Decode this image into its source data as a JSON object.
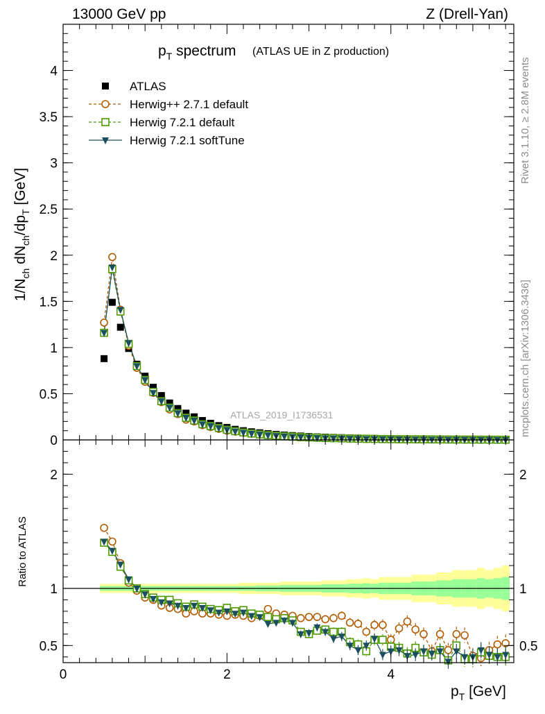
{
  "header": {
    "left": "13000 GeV pp",
    "right": "Z (Drell-Yan)"
  },
  "side_labels": {
    "rivet": "Rivet 3.1.10, ≥ 2.8M events",
    "mcplots": "mcplots.cern.ch [arXiv:1306.3436]"
  },
  "chart_data": [
    {
      "type": "scatter",
      "panel": "main",
      "title_main": "p",
      "title_sub": "T",
      "title_rest": " spectrum",
      "title_note": "(ATLAS UE in Z production)",
      "ylabel": "1/N_ch dN_ch/dp_T [GeV]",
      "analysis_label": "ATLAS_2019_I1736531",
      "xlim": [
        0,
        5.5
      ],
      "ylim": [
        0,
        4.5
      ],
      "y_ticks": [
        {
          "v": 0,
          "label": "0"
        },
        {
          "v": 0.5,
          "label": "0.5"
        },
        {
          "v": 1,
          "label": "1"
        },
        {
          "v": 1.5,
          "label": "1.5"
        },
        {
          "v": 2,
          "label": "2"
        },
        {
          "v": 2.5,
          "label": "2.5"
        },
        {
          "v": 3,
          "label": "3"
        },
        {
          "v": 3.5,
          "label": "3.5"
        },
        {
          "v": 4,
          "label": "4"
        }
      ],
      "legend": [
        {
          "name": "ATLAS",
          "color": "#000000",
          "marker": "square-filled",
          "line": "none"
        },
        {
          "name": "Herwig++ 2.7.1 default",
          "color": "#b35900",
          "marker": "circle-open",
          "line": "dashed"
        },
        {
          "name": "Herwig 7.2.1 default",
          "color": "#4d9900",
          "marker": "square-open",
          "line": "dashed"
        },
        {
          "name": "Herwig 7.2.1 softTune",
          "color": "#1c4f5e",
          "marker": "triangle-filled",
          "line": "solid"
        }
      ],
      "x": [
        0.5,
        0.6,
        0.7,
        0.8,
        0.9,
        1.0,
        1.1,
        1.2,
        1.3,
        1.4,
        1.5,
        1.6,
        1.7,
        1.8,
        1.9,
        2.0,
        2.1,
        2.2,
        2.3,
        2.4,
        2.5,
        2.6,
        2.7,
        2.8,
        2.9,
        3.0,
        3.1,
        3.2,
        3.3,
        3.4,
        3.5,
        3.6,
        3.7,
        3.8,
        3.9,
        4.0,
        4.1,
        4.2,
        4.3,
        4.4,
        4.5,
        4.6,
        4.7,
        4.8,
        4.9,
        5.0,
        5.1,
        5.2,
        5.3,
        5.4
      ],
      "series": [
        {
          "name": "ATLAS",
          "values": [
            0.88,
            1.49,
            1.22,
            0.99,
            0.82,
            0.69,
            0.57,
            0.48,
            0.4,
            0.34,
            0.29,
            0.25,
            0.21,
            0.18,
            0.155,
            0.135,
            0.115,
            0.1,
            0.088,
            0.077,
            0.068,
            0.06,
            0.053,
            0.047,
            0.042,
            0.037,
            0.033,
            0.03,
            0.027,
            0.024,
            0.022,
            0.02,
            0.018,
            0.016,
            0.015,
            0.013,
            0.012,
            0.011,
            0.01,
            0.009,
            0.0085,
            0.008,
            0.0075,
            0.007,
            0.0065,
            0.006,
            0.0055,
            0.005,
            0.0045,
            0.004
          ]
        },
        {
          "name": "Herwig++ 2.7.1 default",
          "values": [
            1.27,
            1.98,
            1.41,
            1.02,
            0.78,
            0.63,
            0.51,
            0.41,
            0.33,
            0.28,
            0.22,
            0.2,
            0.16,
            0.14,
            0.12,
            0.1,
            0.09,
            0.078,
            0.067,
            0.059,
            0.052,
            0.046,
            0.041,
            0.036,
            0.032,
            0.028,
            0.025,
            0.022,
            0.02,
            0.018,
            0.016,
            0.014,
            0.013,
            0.011,
            0.01,
            0.009,
            0.0085,
            0.008,
            0.0075,
            0.007,
            0.0065,
            0.006,
            0.0055,
            0.005,
            0.0045,
            0.004,
            0.0035,
            0.003,
            0.0028,
            0.0026
          ]
        },
        {
          "name": "Herwig 7.2.1 default",
          "values": [
            1.16,
            1.85,
            1.39,
            1.04,
            0.8,
            0.65,
            0.52,
            0.42,
            0.35,
            0.29,
            0.24,
            0.21,
            0.17,
            0.15,
            0.13,
            0.11,
            0.095,
            0.081,
            0.07,
            0.06,
            0.052,
            0.045,
            0.04,
            0.035,
            0.03,
            0.027,
            0.024,
            0.021,
            0.019,
            0.017,
            0.015,
            0.013,
            0.012,
            0.011,
            0.0095,
            0.0085,
            0.0075,
            0.007,
            0.0065,
            0.006,
            0.0055,
            0.005,
            0.0045,
            0.004,
            0.0037,
            0.0034,
            0.0031,
            0.0028,
            0.0025,
            0.0022
          ]
        },
        {
          "name": "Herwig 7.2.1 softTune",
          "values": [
            1.16,
            1.87,
            1.41,
            1.05,
            0.8,
            0.65,
            0.51,
            0.42,
            0.35,
            0.29,
            0.24,
            0.21,
            0.17,
            0.15,
            0.13,
            0.11,
            0.093,
            0.08,
            0.069,
            0.059,
            0.051,
            0.044,
            0.039,
            0.034,
            0.03,
            0.026,
            0.023,
            0.02,
            0.018,
            0.016,
            0.014,
            0.013,
            0.011,
            0.01,
            0.009,
            0.0082,
            0.0073,
            0.0066,
            0.006,
            0.0055,
            0.005,
            0.0045,
            0.004,
            0.0036,
            0.0033,
            0.003,
            0.0027,
            0.0024,
            0.0022,
            0.002
          ]
        }
      ]
    },
    {
      "type": "scatter",
      "panel": "ratio",
      "ylabel": "Ratio to ATLAS",
      "xlabel": "p_T [GeV]",
      "xlim": [
        0,
        5.5
      ],
      "ylim": [
        0.35,
        2.3
      ],
      "x_ticks": [
        {
          "v": 0,
          "label": "0"
        },
        {
          "v": 2,
          "label": "2"
        },
        {
          "v": 4,
          "label": "4"
        }
      ],
      "y_ticks": [
        {
          "v": 0.5,
          "label": "0.5"
        },
        {
          "v": 1,
          "label": "1"
        },
        {
          "v": 2,
          "label": "2"
        }
      ],
      "reference": 1,
      "band_colors": {
        "outer": "#ffff99",
        "inner": "#99ff99"
      },
      "uncertainty_inner": [
        0.02,
        0.02,
        0.02,
        0.02,
        0.02,
        0.02,
        0.02,
        0.02,
        0.02,
        0.02,
        0.02,
        0.02,
        0.02,
        0.02,
        0.02,
        0.02,
        0.02,
        0.02,
        0.02,
        0.025,
        0.025,
        0.025,
        0.03,
        0.03,
        0.03,
        0.03,
        0.03,
        0.035,
        0.035,
        0.035,
        0.04,
        0.04,
        0.045,
        0.04,
        0.05,
        0.05,
        0.05,
        0.05,
        0.06,
        0.06,
        0.06,
        0.07,
        0.07,
        0.08,
        0.08,
        0.08,
        0.09,
        0.08,
        0.09,
        0.1
      ],
      "uncertainty_outer": [
        0.04,
        0.04,
        0.04,
        0.04,
        0.04,
        0.04,
        0.04,
        0.04,
        0.04,
        0.04,
        0.04,
        0.04,
        0.04,
        0.04,
        0.04,
        0.04,
        0.04,
        0.05,
        0.05,
        0.05,
        0.05,
        0.05,
        0.06,
        0.06,
        0.06,
        0.06,
        0.06,
        0.07,
        0.07,
        0.07,
        0.08,
        0.08,
        0.09,
        0.08,
        0.1,
        0.1,
        0.1,
        0.1,
        0.12,
        0.12,
        0.12,
        0.14,
        0.14,
        0.16,
        0.16,
        0.16,
        0.18,
        0.16,
        0.18,
        0.2
      ],
      "series": [
        {
          "name": "Herwig++ 2.7.1 default",
          "values": [
            1.53,
            1.41,
            1.22,
            1.05,
            0.98,
            0.92,
            0.9,
            0.85,
            0.83,
            0.82,
            0.78,
            0.8,
            0.78,
            0.78,
            0.77,
            0.76,
            0.77,
            0.76,
            0.74,
            0.76,
            0.82,
            0.78,
            0.77,
            0.76,
            0.74,
            0.75,
            0.75,
            0.73,
            0.74,
            0.76,
            0.7,
            0.69,
            0.62,
            0.68,
            0.68,
            0.55,
            0.65,
            0.71,
            0.64,
            0.6,
            0.45,
            0.6,
            0.46,
            0.6,
            0.59,
            0.41,
            0.39,
            0.46,
            0.51,
            0.52
          ]
        },
        {
          "name": "Herwig 7.2.1 default",
          "values": [
            1.4,
            1.32,
            1.19,
            1.07,
            1.0,
            0.95,
            0.92,
            0.9,
            0.9,
            0.87,
            0.84,
            0.86,
            0.84,
            0.82,
            0.81,
            0.83,
            0.8,
            0.81,
            0.78,
            0.77,
            0.75,
            0.73,
            0.74,
            0.72,
            0.62,
            0.6,
            0.63,
            0.64,
            0.62,
            0.62,
            0.53,
            0.51,
            0.45,
            0.55,
            0.55,
            0.49,
            0.48,
            0.43,
            0.48,
            0.44,
            0.42,
            0.46,
            0.37,
            0.5,
            0.38,
            0.38,
            0.44,
            0.41,
            0.4,
            0.4
          ]
        },
        {
          "name": "Herwig 7.2.1 softTune",
          "values": [
            1.41,
            1.33,
            1.21,
            1.08,
            1.0,
            0.95,
            0.91,
            0.88,
            0.87,
            0.85,
            0.83,
            0.85,
            0.83,
            0.81,
            0.79,
            0.8,
            0.78,
            0.79,
            0.76,
            0.75,
            0.69,
            0.7,
            0.72,
            0.7,
            0.6,
            0.61,
            0.66,
            0.62,
            0.56,
            0.58,
            0.5,
            0.46,
            0.5,
            0.56,
            0.42,
            0.45,
            0.46,
            0.41,
            0.42,
            0.45,
            0.43,
            0.45,
            0.36,
            0.45,
            0.4,
            0.4,
            0.46,
            0.42,
            0.4,
            0.42
          ]
        }
      ]
    }
  ]
}
